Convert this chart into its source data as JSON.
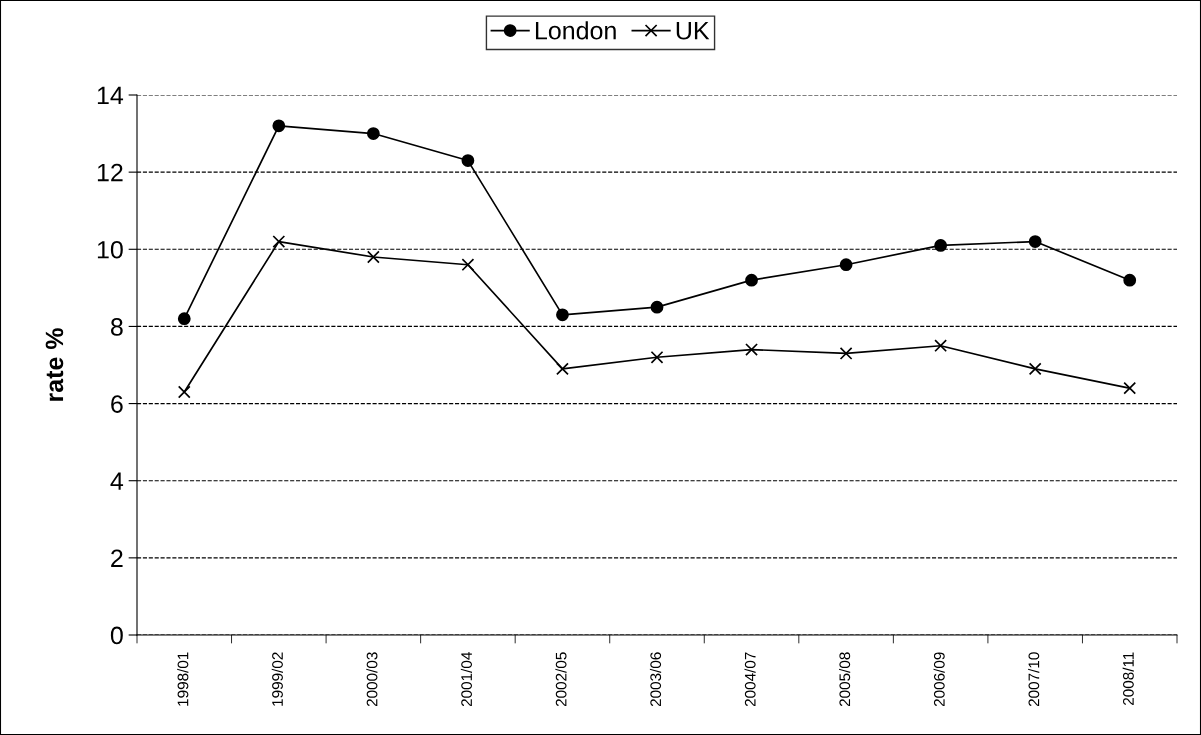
{
  "chart_data": {
    "type": "line",
    "ylabel": "rate %",
    "categories": [
      "1998/01",
      "1999/02",
      "2000/03",
      "2001/04",
      "2002/05",
      "2003/06",
      "2004/07",
      "2005/08",
      "2006/09",
      "2007/10",
      "2008/11"
    ],
    "series": [
      {
        "name": "London",
        "color": "#000000",
        "marker": "circle",
        "values": [
          8.2,
          13.2,
          13.0,
          12.3,
          8.3,
          8.5,
          9.2,
          9.6,
          10.1,
          10.2,
          9.2
        ]
      },
      {
        "name": "UK",
        "color": "#000000",
        "marker": "cross",
        "values": [
          6.3,
          10.2,
          9.8,
          9.6,
          6.9,
          7.2,
          7.4,
          7.3,
          7.5,
          6.9,
          6.4
        ]
      }
    ],
    "ylim": [
      0,
      14
    ],
    "yticks": [
      0,
      2,
      4,
      6,
      8,
      10,
      12,
      14
    ],
    "grid": "y",
    "legend": "top",
    "line_style": "solid"
  }
}
